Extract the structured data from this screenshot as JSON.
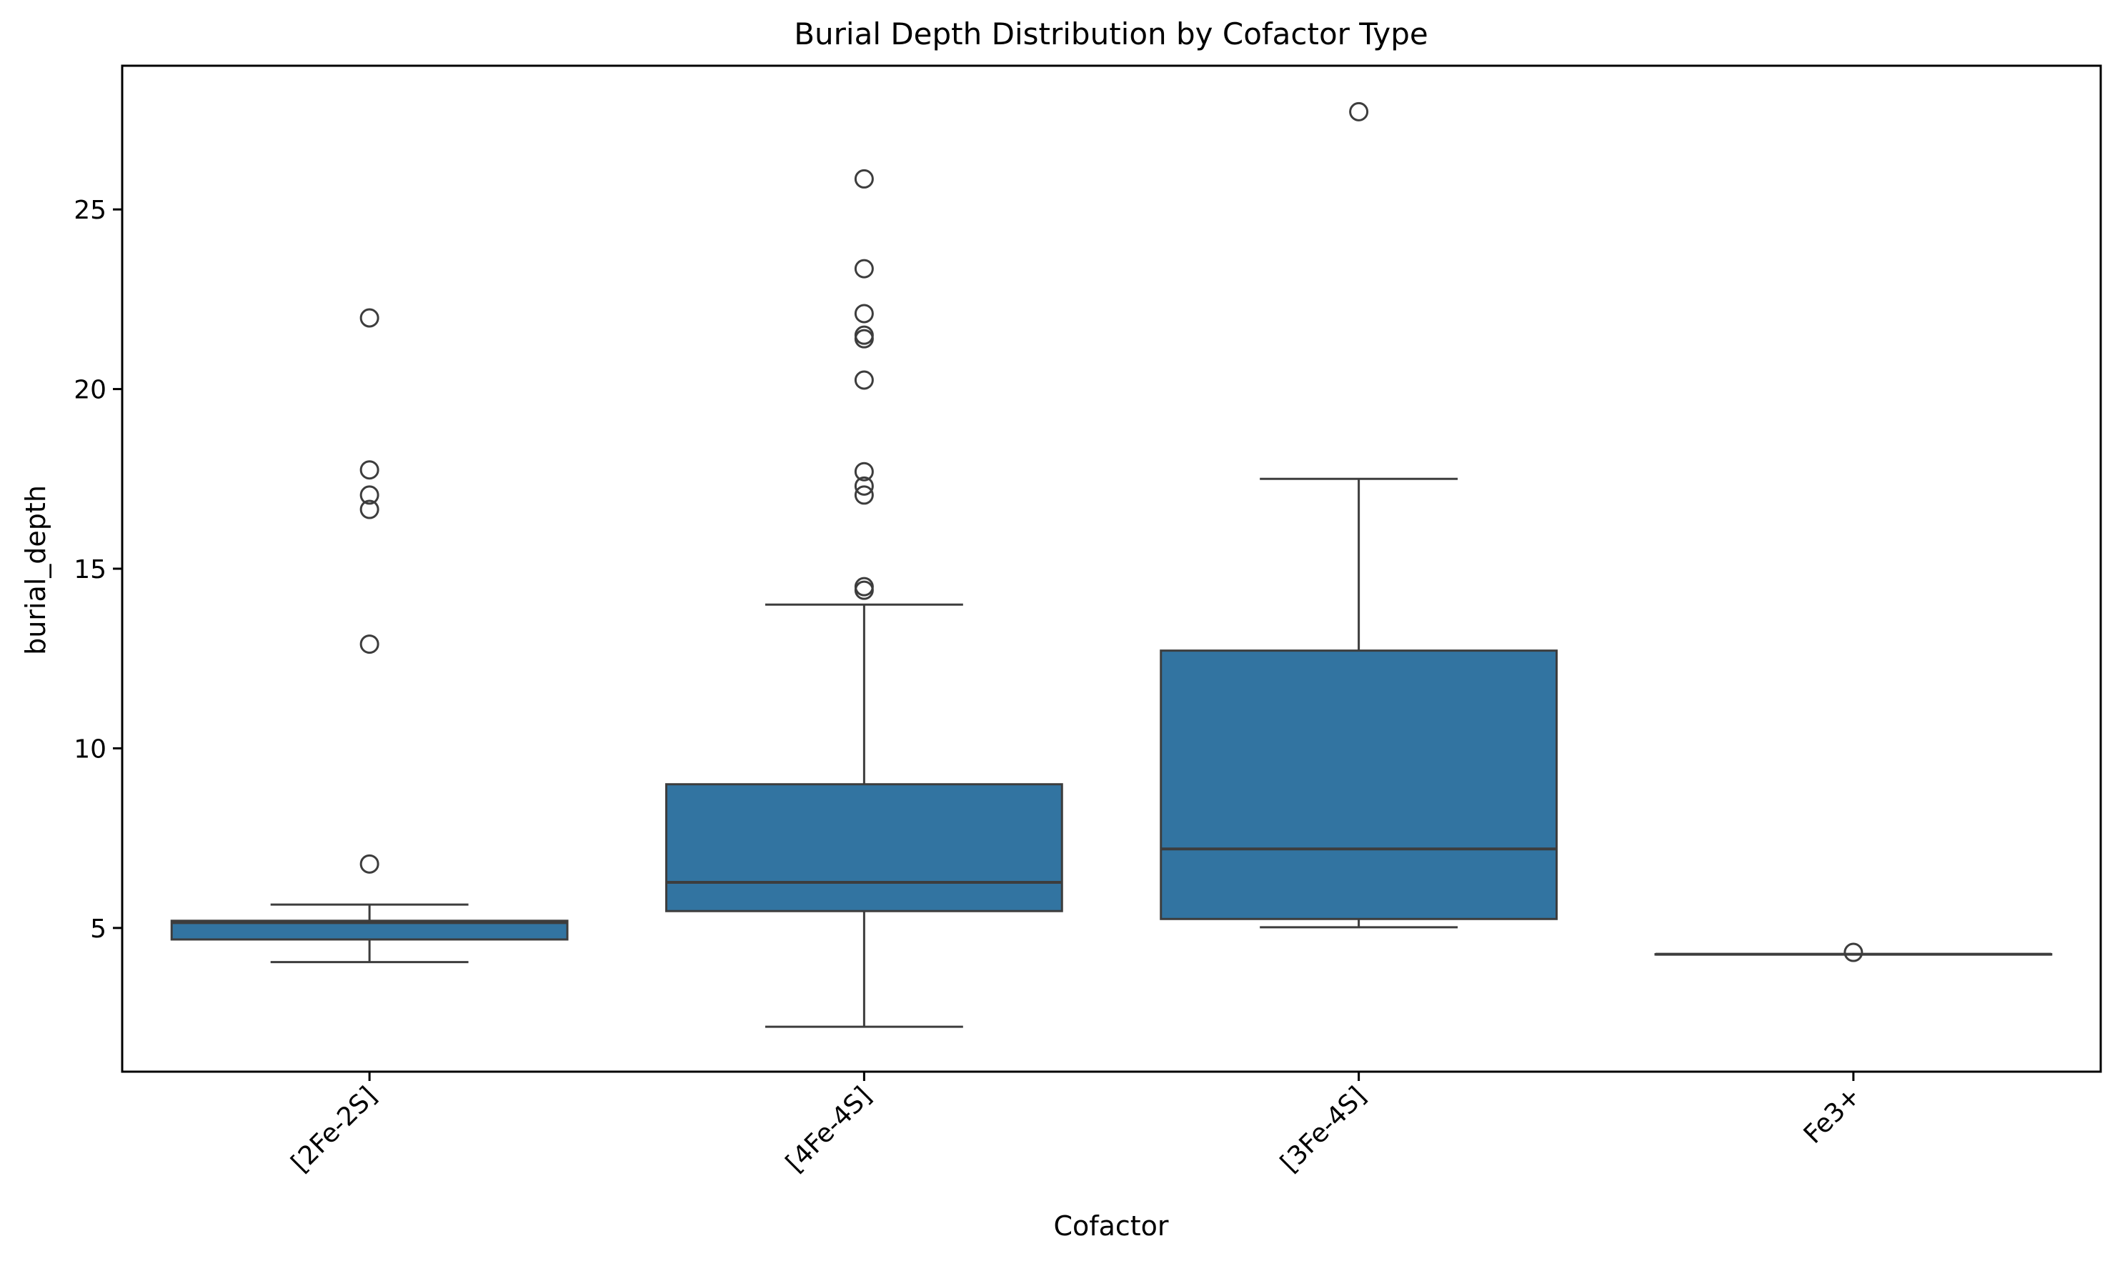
{
  "chart_data": {
    "type": "box",
    "title": "Burial Depth Distribution by Cofactor Type",
    "xlabel": "Cofactor",
    "ylabel": "burial_depth",
    "categories": [
      "[2Fe-2S]",
      "[4Fe-4S]",
      "[3Fe-4S]",
      "Fe3+"
    ],
    "ylim": [
      1.0,
      29.0
    ],
    "yticks": [
      5,
      10,
      15,
      20,
      25
    ],
    "xtick_rotation": 45,
    "grid": false,
    "legend": "none",
    "box_color": "#3274a1",
    "line_color": "#3d3d3d",
    "boxes": [
      {
        "category": "[2Fe-2S]",
        "whisker_low": 4.05,
        "q1": 4.68,
        "median": 5.15,
        "q3": 5.2,
        "whisker_high": 5.65,
        "outliers": [
          6.78,
          12.9,
          16.65,
          17.05,
          17.75,
          21.98
        ]
      },
      {
        "category": "[4Fe-4S]",
        "whisker_low": 2.25,
        "q1": 5.47,
        "median": 6.27,
        "q3": 9.0,
        "whisker_high": 14.0,
        "outliers": [
          14.4,
          14.5,
          17.05,
          17.3,
          17.7,
          20.25,
          21.4,
          21.5,
          22.1,
          23.35,
          25.85
        ]
      },
      {
        "category": "[3Fe-4S]",
        "whisker_low": 5.02,
        "q1": 5.25,
        "median": 7.2,
        "q3": 12.72,
        "whisker_high": 17.5,
        "outliers": [
          27.72
        ]
      },
      {
        "category": "Fe3+",
        "whisker_low": 4.27,
        "q1": 4.27,
        "median": 4.27,
        "q3": 4.27,
        "whisker_high": 4.27,
        "outliers": [
          4.32
        ]
      }
    ]
  }
}
